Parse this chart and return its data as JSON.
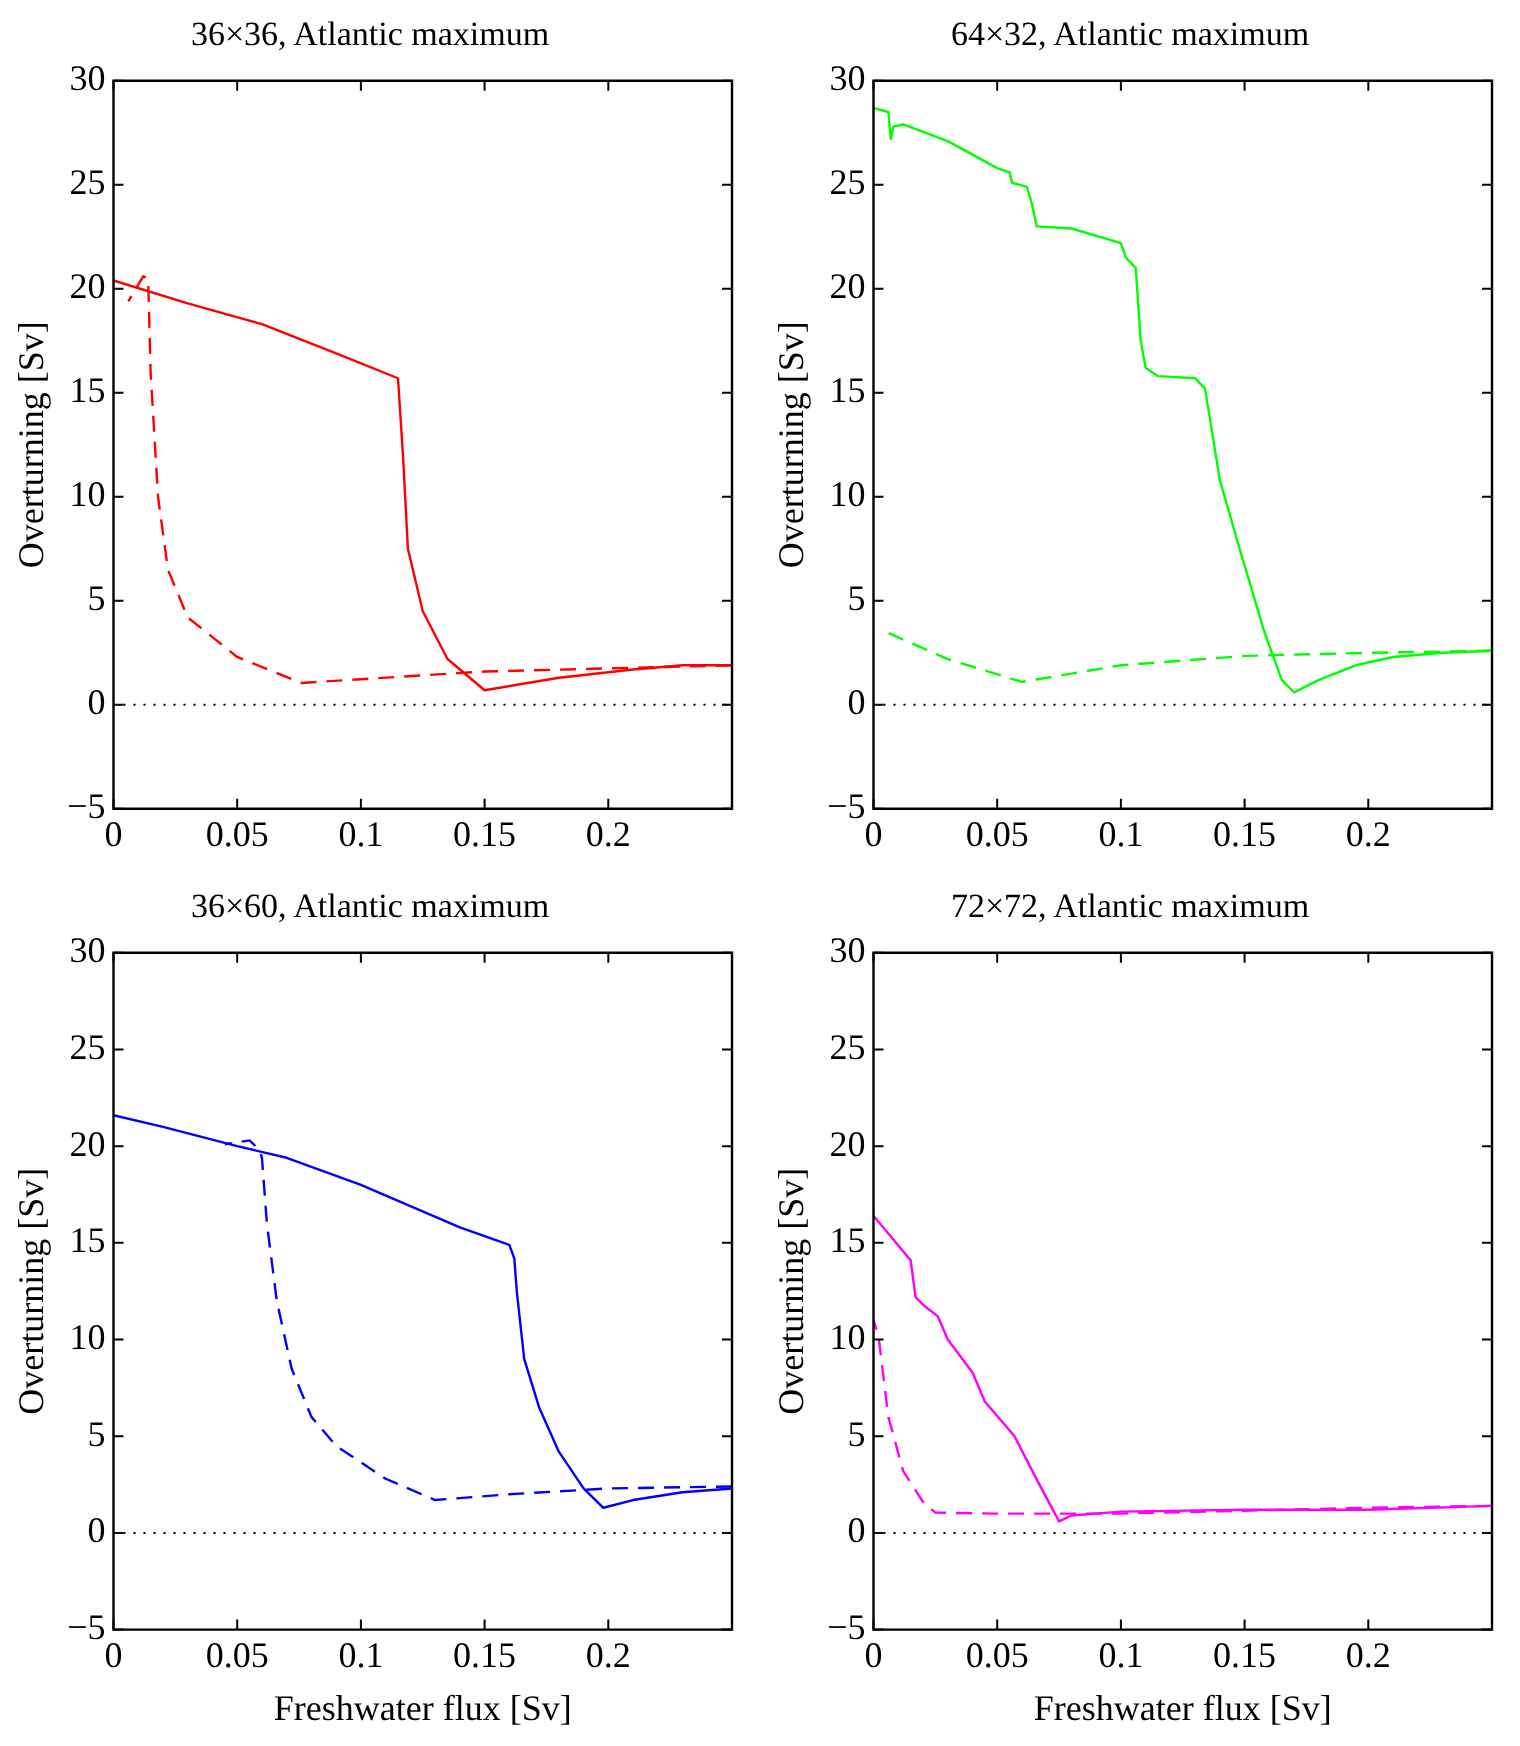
{
  "chart_data": [
    {
      "type": "line",
      "title": "36×36, Atlantic maximum",
      "ylabel": "Overturning [Sv]",
      "xlim": [
        0,
        0.25
      ],
      "xticks": [
        0,
        0.05,
        0.1,
        0.15,
        0.2
      ],
      "ylim": [
        -5,
        30
      ],
      "yticks": [
        -5,
        0,
        5,
        10,
        15,
        20,
        25,
        30
      ],
      "marker": "none",
      "ref_lines": [
        {
          "axis": "y",
          "value": 0,
          "color": "#000000",
          "line_style": "dotted"
        }
      ],
      "series": [
        {
          "color": "#ff0000",
          "line_style": "solid",
          "x": [
            0,
            0.03,
            0.06,
            0.09,
            0.115,
            0.117,
            0.119,
            0.125,
            0.135,
            0.15,
            0.18,
            0.21,
            0.23,
            0.25
          ],
          "values": [
            20.4,
            19.3,
            18.3,
            16.9,
            15.7,
            12,
            7.5,
            4.5,
            2.2,
            0.7,
            1.3,
            1.7,
            1.9,
            1.9
          ]
        },
        {
          "color": "#ff0000",
          "line_style": "dashed",
          "x": [
            0.25,
            0.15,
            0.076,
            0.05,
            0.03,
            0.022,
            0.018,
            0.015,
            0.014,
            0.012,
            0.006
          ],
          "values": [
            1.9,
            1.6,
            1.05,
            2.3,
            4.2,
            6.5,
            10,
            16,
            20.5,
            20.6,
            19.4
          ]
        }
      ]
    },
    {
      "type": "line",
      "title": "64×32, Atlantic maximum",
      "ylabel": "Overturning [Sv]",
      "xlim": [
        0,
        0.25
      ],
      "xticks": [
        0,
        0.05,
        0.1,
        0.15,
        0.2
      ],
      "ylim": [
        -5,
        30
      ],
      "yticks": [
        -5,
        0,
        5,
        10,
        15,
        20,
        25,
        30
      ],
      "marker": "none",
      "ref_lines": [
        {
          "axis": "y",
          "value": 0,
          "color": "#000000",
          "line_style": "dotted"
        }
      ],
      "series": [
        {
          "color": "#00ff00",
          "line_style": "solid",
          "x": [
            0,
            0.006,
            0.007,
            0.008,
            0.012,
            0.03,
            0.05,
            0.055,
            0.056,
            0.062,
            0.064,
            0.066,
            0.08,
            0.1,
            0.102,
            0.106,
            0.108,
            0.11,
            0.115,
            0.13,
            0.134,
            0.14,
            0.148,
            0.158,
            0.165,
            0.17,
            0.18,
            0.195,
            0.21,
            0.23,
            0.25
          ],
          "values": [
            28.7,
            28.5,
            27.2,
            27.8,
            27.9,
            27.1,
            25.8,
            25.6,
            25.1,
            24.9,
            24.1,
            23,
            22.9,
            22.2,
            21.5,
            21,
            17.5,
            16.2,
            15.8,
            15.7,
            15.2,
            10.8,
            7.5,
            3.5,
            1.2,
            0.6,
            1.2,
            1.9,
            2.3,
            2.5,
            2.6
          ]
        },
        {
          "color": "#00ff00",
          "line_style": "dashed",
          "x": [
            0.25,
            0.2,
            0.15,
            0.1,
            0.06,
            0.03,
            0.005
          ],
          "values": [
            2.6,
            2.5,
            2.35,
            1.9,
            1.1,
            2.2,
            3.5
          ]
        }
      ]
    },
    {
      "type": "line",
      "title": "36×60, Atlantic maximum",
      "xlabel": "Freshwater flux [Sv]",
      "ylabel": "Overturning [Sv]",
      "xlim": [
        0,
        0.25
      ],
      "xticks": [
        0,
        0.05,
        0.1,
        0.15,
        0.2
      ],
      "ylim": [
        -5,
        30
      ],
      "yticks": [
        -5,
        0,
        5,
        10,
        15,
        20,
        25,
        30
      ],
      "marker": "none",
      "ref_lines": [
        {
          "axis": "y",
          "value": 0,
          "color": "#000000",
          "line_style": "dotted"
        }
      ],
      "series": [
        {
          "color": "#0000ff",
          "line_style": "solid",
          "x": [
            0,
            0.02,
            0.05,
            0.07,
            0.1,
            0.14,
            0.16,
            0.162,
            0.163,
            0.166,
            0.172,
            0.18,
            0.19,
            0.198,
            0.21,
            0.23,
            0.25
          ],
          "values": [
            21.6,
            21,
            20,
            19.4,
            18,
            15.8,
            14.9,
            14.2,
            12.5,
            9,
            6.5,
            4.2,
            2.3,
            1.3,
            1.7,
            2.1,
            2.3
          ]
        },
        {
          "color": "#0000ff",
          "line_style": "dashed",
          "x": [
            0.25,
            0.2,
            0.16,
            0.13,
            0.11,
            0.09,
            0.08,
            0.072,
            0.066,
            0.062,
            0.06,
            0.059,
            0.055,
            0.05,
            0.045
          ],
          "values": [
            2.4,
            2.3,
            2,
            1.7,
            2.8,
            4.5,
            6,
            8.5,
            12,
            16,
            19.4,
            19.8,
            20.3,
            20.2,
            20.1
          ]
        }
      ]
    },
    {
      "type": "line",
      "title": "72×72, Atlantic maximum",
      "xlabel": "Freshwater flux [Sv]",
      "ylabel": "Overturning [Sv]",
      "xlim": [
        0,
        0.25
      ],
      "xticks": [
        0,
        0.05,
        0.1,
        0.15,
        0.2
      ],
      "ylim": [
        -5,
        30
      ],
      "yticks": [
        -5,
        0,
        5,
        10,
        15,
        20,
        25,
        30
      ],
      "marker": "none",
      "ref_lines": [
        {
          "axis": "y",
          "value": 0,
          "color": "#000000",
          "line_style": "dotted"
        }
      ],
      "series": [
        {
          "color": "#ff00ff",
          "line_style": "solid",
          "x": [
            0,
            0.015,
            0.017,
            0.02,
            0.026,
            0.03,
            0.04,
            0.045,
            0.057,
            0.065,
            0.075,
            0.08,
            0.1,
            0.15,
            0.2,
            0.25
          ],
          "values": [
            16.4,
            14.1,
            12.2,
            11.8,
            11.2,
            10,
            8.3,
            6.8,
            5,
            3,
            0.6,
            0.9,
            1.1,
            1.2,
            1.2,
            1.4
          ]
        },
        {
          "color": "#ff00ff",
          "line_style": "dashed",
          "x": [
            0.25,
            0.2,
            0.15,
            0.1,
            0.05,
            0.025,
            0.02,
            0.012,
            0.006,
            0.002,
            0
          ],
          "values": [
            1.4,
            1.3,
            1.15,
            1,
            1,
            1.05,
            1.6,
            3.2,
            6,
            10.2,
            11
          ]
        }
      ]
    }
  ]
}
